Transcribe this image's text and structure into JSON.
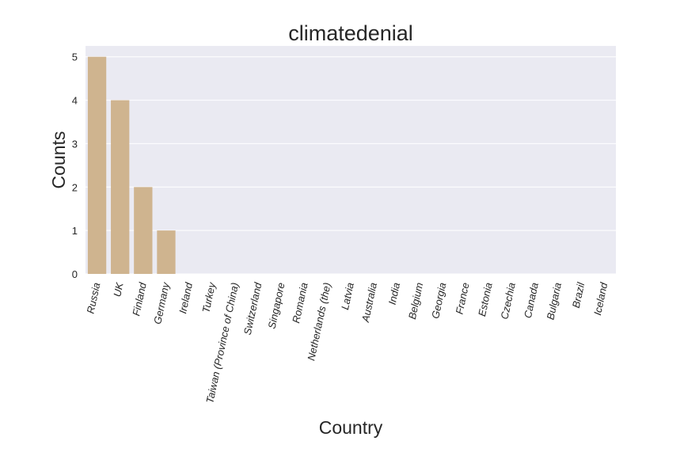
{
  "chart_data": {
    "type": "bar",
    "title": "climatedenial",
    "xlabel": "Country",
    "ylabel": "Counts",
    "categories": [
      "Russia",
      "UK",
      "Finland",
      "Germany",
      "Ireland",
      "Turkey",
      "Taiwan (Province of China)",
      "Switzerland",
      "Singapore",
      "Romania",
      "Netherlands (the)",
      "Latvia",
      "Australia",
      "India",
      "Belgium",
      "Georgia",
      "France",
      "Estonia",
      "Czechia",
      "Canada",
      "Bulgaria",
      "Brazil",
      "Iceland"
    ],
    "values": [
      5,
      4,
      2,
      1,
      0,
      0,
      0,
      0,
      0,
      0,
      0,
      0,
      0,
      0,
      0,
      0,
      0,
      0,
      0,
      0,
      0,
      0,
      0
    ],
    "yticks": [
      0,
      1,
      2,
      3,
      4,
      5
    ],
    "ylim": [
      0,
      5.25
    ],
    "grid": true,
    "colors": {
      "bar": "#cfb48f",
      "plot_background": "#eaeaf2",
      "grid": "#ffffff",
      "text": "#262626"
    }
  }
}
